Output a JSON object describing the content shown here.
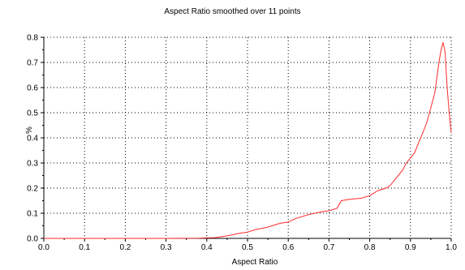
{
  "chart_data": {
    "type": "line",
    "title": "Aspect Ratio smoothed over 11 points",
    "xlabel": "Aspect Ratio",
    "ylabel": "%",
    "xlim": [
      0.0,
      1.0
    ],
    "ylim": [
      0.0,
      0.8
    ],
    "xticks": [
      "0.0",
      "0.1",
      "0.2",
      "0.3",
      "0.4",
      "0.5",
      "0.6",
      "0.7",
      "0.8",
      "0.9",
      "1.0"
    ],
    "yticks": [
      "0.0",
      "0.1",
      "0.2",
      "0.3",
      "0.4",
      "0.5",
      "0.6",
      "0.7",
      "0.8"
    ],
    "grid": true,
    "series": [
      {
        "color": "#ff2a2a",
        "x": [
          0.0,
          0.3,
          0.38,
          0.42,
          0.45,
          0.48,
          0.5,
          0.52,
          0.55,
          0.58,
          0.6,
          0.62,
          0.65,
          0.68,
          0.7,
          0.72,
          0.73,
          0.75,
          0.78,
          0.8,
          0.82,
          0.84,
          0.85,
          0.86,
          0.87,
          0.88,
          0.89,
          0.9,
          0.91,
          0.92,
          0.93,
          0.94,
          0.95,
          0.96,
          0.97,
          0.975,
          0.98,
          0.985,
          0.99,
          0.995,
          1.0
        ],
        "y": [
          0.0,
          0.0,
          0.001,
          0.003,
          0.01,
          0.02,
          0.025,
          0.035,
          0.045,
          0.06,
          0.065,
          0.08,
          0.095,
          0.105,
          0.11,
          0.12,
          0.15,
          0.155,
          0.16,
          0.17,
          0.19,
          0.2,
          0.21,
          0.23,
          0.25,
          0.27,
          0.3,
          0.32,
          0.34,
          0.38,
          0.42,
          0.46,
          0.52,
          0.58,
          0.7,
          0.75,
          0.78,
          0.74,
          0.6,
          0.5,
          0.42
        ]
      }
    ]
  }
}
